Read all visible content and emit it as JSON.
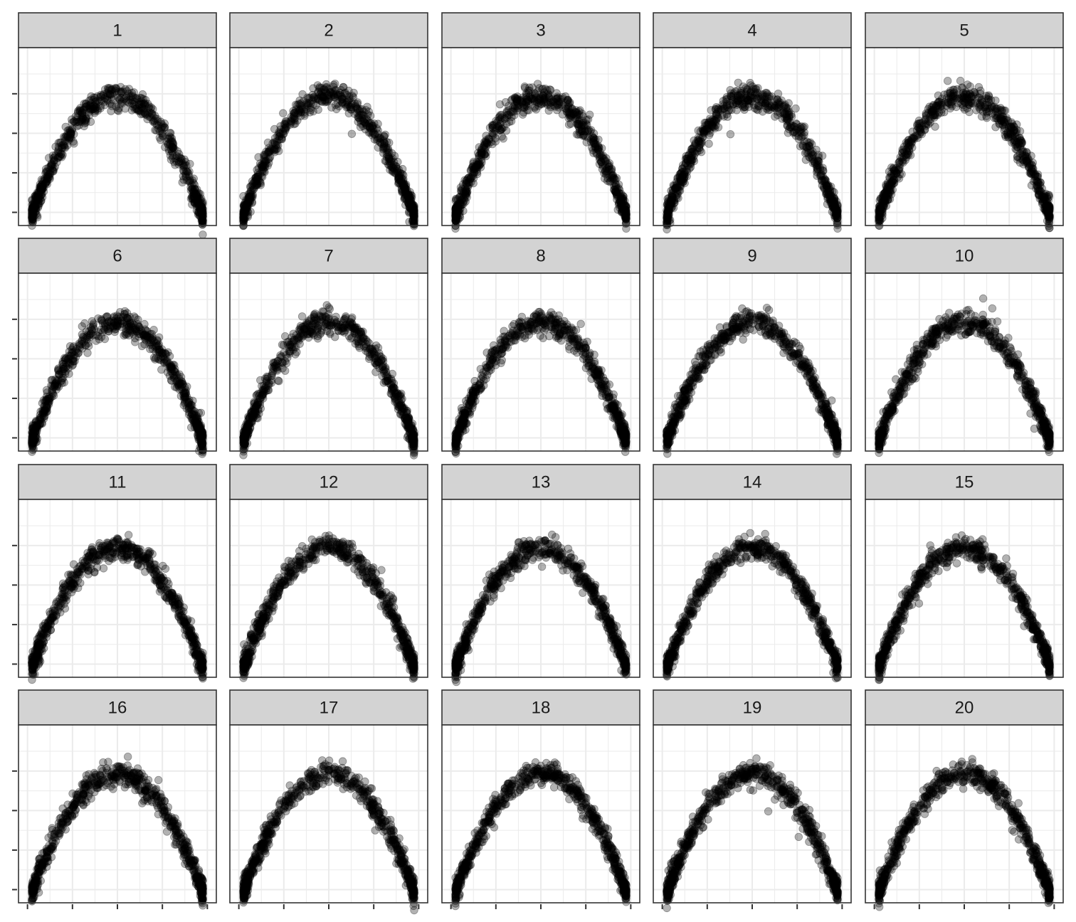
{
  "chart_data": {
    "type": "scatter",
    "layout": "facet-grid",
    "facet_rows": 4,
    "facet_cols": 5,
    "facet_labels": [
      "1",
      "2",
      "3",
      "4",
      "5",
      "6",
      "7",
      "8",
      "9",
      "10",
      "11",
      "12",
      "13",
      "14",
      "15",
      "16",
      "17",
      "18",
      "19",
      "20"
    ],
    "title": "",
    "xlabel": "",
    "ylabel": "",
    "x_tick_labels": [],
    "y_tick_labels": [],
    "xlim": [
      -1.1,
      1.1
    ],
    "ylim": [
      -1.0,
      0.35
    ],
    "x_ticks": [
      -1.0,
      -0.5,
      0.0,
      0.5,
      1.0
    ],
    "y_ticks": [
      -0.9,
      -0.6,
      -0.3,
      0.0
    ],
    "grid": true,
    "point_color": "#000000",
    "point_opacity": 0.3,
    "points_per_panel": 700,
    "pattern": "inverted parabola: y ≈ -x², x spread across [-0.95, 0.95]",
    "facet_strip_color": "#d3d3d3",
    "panel_border_color": "#333333",
    "grid_color": "#ebebeb"
  }
}
